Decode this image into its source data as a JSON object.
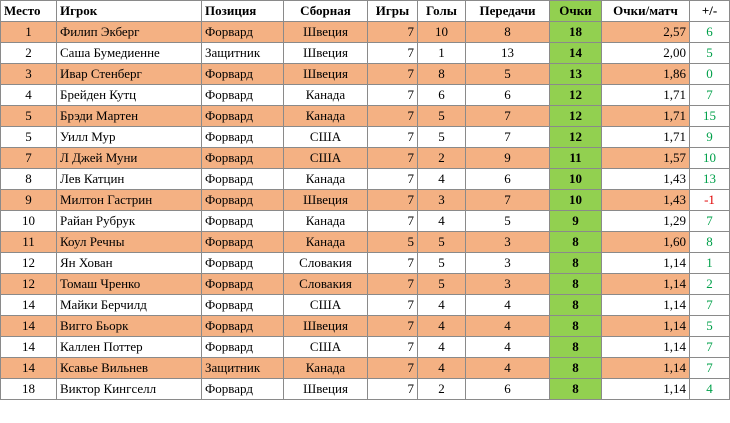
{
  "colors": {
    "highlight_row": "#f4b183",
    "points_column": "#92d050",
    "diff_positive": "#00a04a",
    "diff_negative": "#e00000"
  },
  "table": {
    "headers": [
      "Место",
      "Игрок",
      "Позиция",
      "Сборная",
      "Игры",
      "Голы",
      "Передачи",
      "Очки",
      "Очки/матч",
      "+/-"
    ],
    "rows": [
      {
        "place": "1",
        "player": "Филип Экберг",
        "position": "Форвард",
        "team": "Швеция",
        "games": "7",
        "goals": "10",
        "assists": "8",
        "points": "18",
        "ppg": "2,57",
        "diff": "6",
        "highlight": true,
        "diff_sign": "pos"
      },
      {
        "place": "2",
        "player": "Саша Бумедиенне",
        "position": "Защитник",
        "team": "Швеция",
        "games": "7",
        "goals": "1",
        "assists": "13",
        "points": "14",
        "ppg": "2,00",
        "diff": "5",
        "highlight": false,
        "diff_sign": "pos"
      },
      {
        "place": "3",
        "player": "Ивар Стенберг",
        "position": "Форвард",
        "team": "Швеция",
        "games": "7",
        "goals": "8",
        "assists": "5",
        "points": "13",
        "ppg": "1,86",
        "diff": "0",
        "highlight": true,
        "diff_sign": "pos"
      },
      {
        "place": "4",
        "player": "Брейден Кутц",
        "position": "Форвард",
        "team": "Канада",
        "games": "7",
        "goals": "6",
        "assists": "6",
        "points": "12",
        "ppg": "1,71",
        "diff": "7",
        "highlight": false,
        "diff_sign": "pos"
      },
      {
        "place": "5",
        "player": "Брэди Мартен",
        "position": "Форвард",
        "team": "Канада",
        "games": "7",
        "goals": "5",
        "assists": "7",
        "points": "12",
        "ppg": "1,71",
        "diff": "15",
        "highlight": true,
        "diff_sign": "pos"
      },
      {
        "place": "5",
        "player": "Уилл Мур",
        "position": "Форвард",
        "team": "США",
        "games": "7",
        "goals": "5",
        "assists": "7",
        "points": "12",
        "ppg": "1,71",
        "diff": "9",
        "highlight": false,
        "diff_sign": "pos"
      },
      {
        "place": "7",
        "player": "Л Джей Муни",
        "position": "Форвард",
        "team": "США",
        "games": "7",
        "goals": "2",
        "assists": "9",
        "points": "11",
        "ppg": "1,57",
        "diff": "10",
        "highlight": true,
        "diff_sign": "pos"
      },
      {
        "place": "8",
        "player": "Лев Катцин",
        "position": "Форвард",
        "team": "Канада",
        "games": "7",
        "goals": "4",
        "assists": "6",
        "points": "10",
        "ppg": "1,43",
        "diff": "13",
        "highlight": false,
        "diff_sign": "pos"
      },
      {
        "place": "9",
        "player": "Милтон Гастрин",
        "position": "Форвард",
        "team": "Швеция",
        "games": "7",
        "goals": "3",
        "assists": "7",
        "points": "10",
        "ppg": "1,43",
        "diff": "-1",
        "highlight": true,
        "diff_sign": "neg"
      },
      {
        "place": "10",
        "player": "Райан Рубрук",
        "position": "Форвард",
        "team": "Канада",
        "games": "7",
        "goals": "4",
        "assists": "5",
        "points": "9",
        "ppg": "1,29",
        "diff": "7",
        "highlight": false,
        "diff_sign": "pos"
      },
      {
        "place": "11",
        "player": "Коул Речны",
        "position": "Форвард",
        "team": "Канада",
        "games": "5",
        "goals": "5",
        "assists": "3",
        "points": "8",
        "ppg": "1,60",
        "diff": "8",
        "highlight": true,
        "diff_sign": "pos"
      },
      {
        "place": "12",
        "player": "Ян Хован",
        "position": "Форвард",
        "team": "Словакия",
        "games": "7",
        "goals": "5",
        "assists": "3",
        "points": "8",
        "ppg": "1,14",
        "diff": "1",
        "highlight": false,
        "diff_sign": "pos"
      },
      {
        "place": "12",
        "player": "Томаш Чренко",
        "position": "Форвард",
        "team": "Словакия",
        "games": "7",
        "goals": "5",
        "assists": "3",
        "points": "8",
        "ppg": "1,14",
        "diff": "2",
        "highlight": true,
        "diff_sign": "pos"
      },
      {
        "place": "14",
        "player": "Майки Берчилд",
        "position": "Форвард",
        "team": "США",
        "games": "7",
        "goals": "4",
        "assists": "4",
        "points": "8",
        "ppg": "1,14",
        "diff": "7",
        "highlight": false,
        "diff_sign": "pos"
      },
      {
        "place": "14",
        "player": "Вигго Бьорк",
        "position": "Форвард",
        "team": "Швеция",
        "games": "7",
        "goals": "4",
        "assists": "4",
        "points": "8",
        "ppg": "1,14",
        "diff": "5",
        "highlight": true,
        "diff_sign": "pos"
      },
      {
        "place": "14",
        "player": "Каллен Поттер",
        "position": "Форвард",
        "team": "США",
        "games": "7",
        "goals": "4",
        "assists": "4",
        "points": "8",
        "ppg": "1,14",
        "diff": "7",
        "highlight": false,
        "diff_sign": "pos"
      },
      {
        "place": "14",
        "player": "Ксавье Вильнев",
        "position": "Защитник",
        "team": "Канада",
        "games": "7",
        "goals": "4",
        "assists": "4",
        "points": "8",
        "ppg": "1,14",
        "diff": "7",
        "highlight": true,
        "diff_sign": "pos"
      },
      {
        "place": "18",
        "player": "Виктор Кингселл",
        "position": "Форвард",
        "team": "Швеция",
        "games": "7",
        "goals": "2",
        "assists": "6",
        "points": "8",
        "ppg": "1,14",
        "diff": "4",
        "highlight": false,
        "diff_sign": "pos"
      }
    ]
  }
}
